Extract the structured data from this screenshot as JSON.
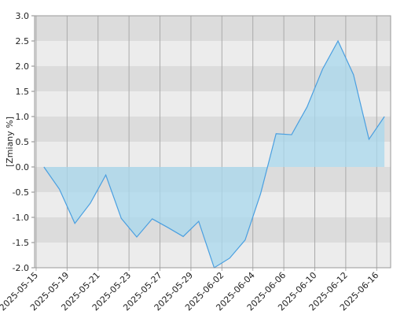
{
  "chart_data": {
    "type": "area",
    "y_label": "[Zmiany %]",
    "values": [
      0.0,
      -0.44,
      -1.12,
      -0.72,
      -0.16,
      -1.02,
      -1.39,
      -1.03,
      -1.2,
      -1.38,
      -1.08,
      -2.0,
      -1.81,
      -1.45,
      -0.53,
      0.66,
      0.64,
      1.19,
      1.94,
      2.5,
      1.83,
      0.55,
      1.0
    ],
    "color": "#4a9fe0",
    "fill": "#a8d8ee",
    "xlim": [
      -0.6,
      22.4
    ],
    "xticks": [
      {
        "value": -0.5,
        "label": "2025-05-15"
      },
      {
        "value": 1.5,
        "label": "2025-05-19"
      },
      {
        "value": 3.5,
        "label": "2025-05-21"
      },
      {
        "value": 5.5,
        "label": "2025-05-23"
      },
      {
        "value": 7.5,
        "label": "2025-05-27"
      },
      {
        "value": 9.5,
        "label": "2025-05-29"
      },
      {
        "value": 11.5,
        "label": "2025-06-02"
      },
      {
        "value": 13.5,
        "label": "2025-06-04"
      },
      {
        "value": 15.5,
        "label": "2025-06-06"
      },
      {
        "value": 17.5,
        "label": "2025-06-10"
      },
      {
        "value": 19.5,
        "label": "2025-06-12"
      },
      {
        "value": 21.5,
        "label": "2025-06-16"
      }
    ],
    "ylim": [
      -2.0,
      3.0
    ],
    "yticks": [
      {
        "value": -2,
        "label": "-2.0"
      },
      {
        "value": -1.5,
        "label": "-1.5"
      },
      {
        "value": -1,
        "label": "-1.0"
      },
      {
        "value": -0.5,
        "label": "-0.5"
      },
      {
        "value": 0,
        "label": "0.0"
      },
      {
        "value": 0.5,
        "label": "0.5"
      },
      {
        "value": 1,
        "label": "1.0"
      },
      {
        "value": 1.5,
        "label": "1.5"
      },
      {
        "value": 2,
        "label": "2.0"
      },
      {
        "value": 2.5,
        "label": "2.5"
      },
      {
        "value": 3,
        "label": "3.0"
      }
    ],
    "band_colors": [
      "#dcdcdc",
      "#ececec"
    ],
    "grid_color": "#aaaaaa"
  }
}
